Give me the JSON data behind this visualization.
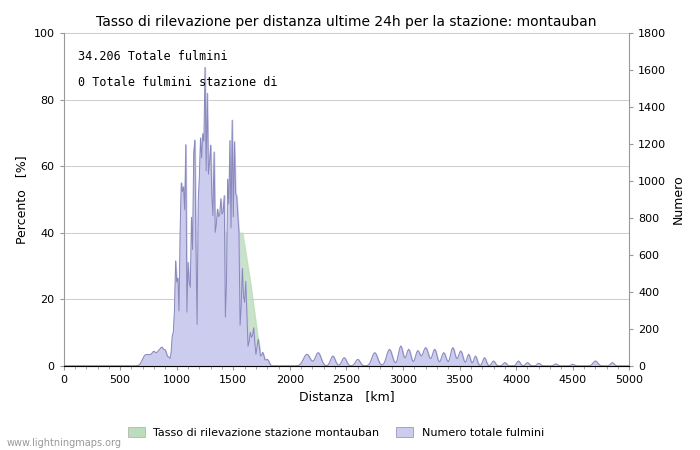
{
  "title": "Tasso di rilevazione per distanza ultime 24h per la stazione: montauban",
  "xlabel": "Distanza   [km]",
  "ylabel_left": "Percento   [%]",
  "ylabel_right": "Numero",
  "annotation_line1": "34.206 Totale fulmini",
  "annotation_line2": "0 Totale fulmini stazione di",
  "legend_label_green": "Tasso di rilevazione stazione montauban",
  "legend_label_blue": "Numero totale fulmini",
  "watermark": "www.lightningmaps.org",
  "xlim": [
    0,
    5000
  ],
  "ylim_left": [
    0,
    100
  ],
  "ylim_right": [
    0,
    1800
  ],
  "xticks": [
    0,
    500,
    1000,
    1500,
    2000,
    2500,
    3000,
    3500,
    4000,
    4500,
    5000
  ],
  "yticks_left": [
    0,
    20,
    40,
    60,
    80,
    100
  ],
  "yticks_right": [
    0,
    200,
    400,
    600,
    800,
    1000,
    1200,
    1400,
    1600,
    1800
  ],
  "line_color": "#8888bb",
  "fill_color": "#ccccee",
  "green_fill_color": "#bbddbb",
  "background_color": "#ffffff",
  "grid_color": "#cccccc"
}
